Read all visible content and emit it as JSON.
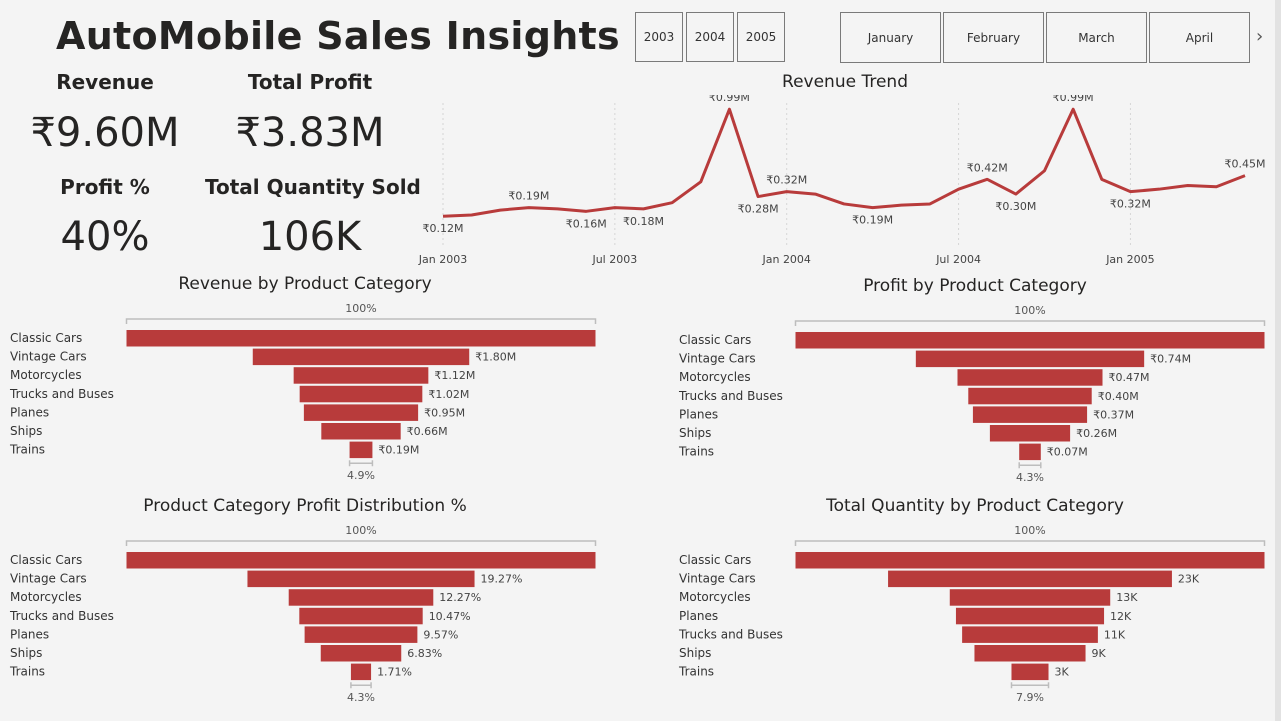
{
  "header": {
    "title": "AutoMobile Sales Insights"
  },
  "kpis": {
    "revenue_label": "Revenue",
    "revenue_value": "₹9.60M",
    "profit_label": "Total Profit",
    "profit_value": "₹3.83M",
    "profit_pct_label": "Profit %",
    "profit_pct_value": "40%",
    "qty_label": "Total Quantity Sold",
    "qty_value": "106K"
  },
  "slicers": {
    "years": [
      "2003",
      "2004",
      "2005"
    ],
    "months": [
      "January",
      "February",
      "March",
      "April"
    ],
    "more_icon": "chevron-right-icon"
  },
  "colors": {
    "bar": "#b83b3b",
    "background": "#f4f4f4",
    "axis": "#c8c8c8"
  },
  "chart_data": [
    {
      "type": "line",
      "title": "Revenue Trend",
      "x": [
        "Jan 2003",
        "Feb 2003",
        "Mar 2003",
        "Apr 2003",
        "May 2003",
        "Jun 2003",
        "Jul 2003",
        "Aug 2003",
        "Sep 2003",
        "Oct 2003",
        "Nov 2003",
        "Dec 2003",
        "Jan 2004",
        "Feb 2004",
        "Mar 2004",
        "Apr 2004",
        "May 2004",
        "Jun 2004",
        "Jul 2004",
        "Aug 2004",
        "Sep 2004",
        "Oct 2004",
        "Nov 2004",
        "Dec 2004",
        "Jan 2005",
        "Feb 2005",
        "Mar 2005",
        "Apr 2005",
        "May 2005"
      ],
      "values": [
        0.12,
        0.13,
        0.17,
        0.19,
        0.18,
        0.16,
        0.19,
        0.18,
        0.23,
        0.4,
        0.99,
        0.28,
        0.32,
        0.3,
        0.22,
        0.19,
        0.21,
        0.22,
        0.34,
        0.42,
        0.3,
        0.49,
        0.99,
        0.42,
        0.32,
        0.34,
        0.37,
        0.36,
        0.45
      ],
      "point_labels": [
        {
          "i": 0,
          "text": "₹0.12M"
        },
        {
          "i": 3,
          "text": "₹0.19M"
        },
        {
          "i": 5,
          "text": "₹0.16M"
        },
        {
          "i": 7,
          "text": "₹0.18M"
        },
        {
          "i": 10,
          "text": "₹0.99M"
        },
        {
          "i": 11,
          "text": "₹0.28M"
        },
        {
          "i": 12,
          "text": "₹0.32M"
        },
        {
          "i": 15,
          "text": "₹0.19M"
        },
        {
          "i": 19,
          "text": "₹0.42M"
        },
        {
          "i": 20,
          "text": "₹0.30M"
        },
        {
          "i": 22,
          "text": "₹0.99M"
        },
        {
          "i": 24,
          "text": "₹0.32M"
        },
        {
          "i": 28,
          "text": "₹0.45M"
        }
      ],
      "x_ticks": [
        {
          "i": 0,
          "text": "Jan 2003"
        },
        {
          "i": 6,
          "text": "Jul 2003"
        },
        {
          "i": 12,
          "text": "Jan 2004"
        },
        {
          "i": 18,
          "text": "Jul 2004"
        },
        {
          "i": 24,
          "text": "Jan 2005"
        }
      ],
      "ylim": [
        0,
        1.0
      ]
    },
    {
      "type": "bar",
      "title": "Revenue by Product Category",
      "categories": [
        "Classic Cars",
        "Vintage Cars",
        "Motorcycles",
        "Trucks and Buses",
        "Planes",
        "Ships",
        "Trains"
      ],
      "values": [
        3.9,
        1.8,
        1.12,
        1.02,
        0.95,
        0.66,
        0.19
      ],
      "labels": [
        "",
        "₹1.80M",
        "₹1.12M",
        "₹1.02M",
        "₹0.95M",
        "₹0.66M",
        "₹0.19M"
      ],
      "top_pct": "100%",
      "bottom_pct": "4.9%"
    },
    {
      "type": "bar",
      "title": "Profit by Product Category",
      "categories": [
        "Classic Cars",
        "Vintage Cars",
        "Motorcycles",
        "Trucks and Buses",
        "Planes",
        "Ships",
        "Trains"
      ],
      "values": [
        1.52,
        0.74,
        0.47,
        0.4,
        0.37,
        0.26,
        0.07
      ],
      "labels": [
        "",
        "₹0.74M",
        "₹0.47M",
        "₹0.40M",
        "₹0.37M",
        "₹0.26M",
        "₹0.07M"
      ],
      "top_pct": "100%",
      "bottom_pct": "4.3%"
    },
    {
      "type": "bar",
      "title": "Product Category Profit Distribution %",
      "categories": [
        "Classic Cars",
        "Vintage Cars",
        "Motorcycles",
        "Trucks and Buses",
        "Planes",
        "Ships",
        "Trains"
      ],
      "values": [
        39.8,
        19.27,
        12.27,
        10.47,
        9.57,
        6.83,
        1.71
      ],
      "labels": [
        "",
        "19.27%",
        "12.27%",
        "10.47%",
        "9.57%",
        "6.83%",
        "1.71%"
      ],
      "top_pct": "100%",
      "bottom_pct": "4.3%"
    },
    {
      "type": "bar",
      "title": "Total Quantity by Product Category",
      "categories": [
        "Classic Cars",
        "Vintage Cars",
        "Motorcycles",
        "Planes",
        "Trucks and Buses",
        "Ships",
        "Trains"
      ],
      "values": [
        38,
        23,
        13,
        12,
        11,
        9,
        3
      ],
      "labels": [
        "",
        "23K",
        "13K",
        "12K",
        "11K",
        "9K",
        "3K"
      ],
      "top_pct": "100%",
      "bottom_pct": "7.9%"
    }
  ]
}
